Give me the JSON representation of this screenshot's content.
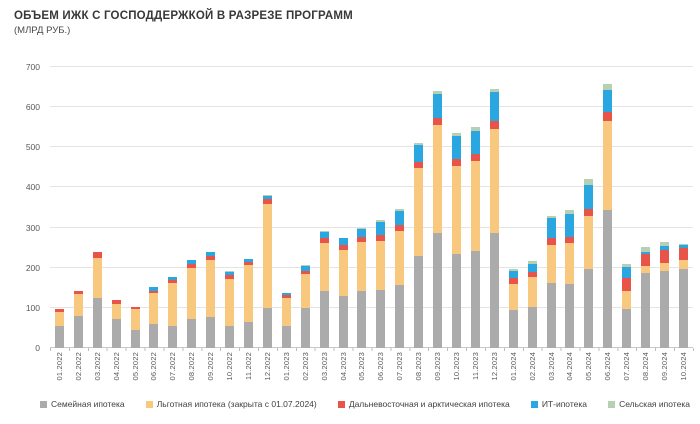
{
  "title": "ОБЪЕМ ИЖК С ГОСПОДДЕРЖКОЙ В РАЗРЕЗЕ ПРОГРАММ",
  "subtitle": "(МЛРД РУБ.)",
  "colors": {
    "family": "#ababab",
    "preferential": "#f8c87e",
    "far_east": "#e8534a",
    "it": "#2aa7e0",
    "rural": "#b7d0b4",
    "grid": "#e4e4e4",
    "axis": "#c9c9c9",
    "tick_text": "#5a5a5a",
    "title_text": "#383838"
  },
  "chart_data": {
    "type": "bar",
    "stacked": true,
    "title": "ОБЪЕМ ИЖК С ГОСПОДДЕРЖКОЙ В РАЗРЕЗЕ ПРОГРАММ",
    "subtitle": "(МЛРД РУБ.)",
    "ylabel": "млрд руб.",
    "ylim": [
      0,
      700
    ],
    "ytick_step": 100,
    "grid": true,
    "legend_position": "bottom",
    "categories": [
      "01.2022",
      "02.2022",
      "03.2022",
      "04.2022",
      "05.2022",
      "06.2022",
      "07.2022",
      "08.2022",
      "09.2022",
      "10.2022",
      "11.2022",
      "12.2022",
      "01.2023",
      "02.2023",
      "03.2023",
      "04.2023",
      "05.2023",
      "06.2023",
      "07.2023",
      "08.2023",
      "09.2023",
      "10.2023",
      "11.2023",
      "12.2023",
      "01.2024",
      "02.2024",
      "03.2024",
      "04.2024",
      "05.2024",
      "06.2024",
      "07.2024",
      "08.2024",
      "09.2024",
      "10.2024"
    ],
    "series": [
      {
        "name": "Семейная ипотека",
        "color_key": "family",
        "values": [
          56,
          80,
          125,
          72,
          46,
          60,
          56,
          73,
          77,
          55,
          64,
          99,
          56,
          100,
          143,
          130,
          143,
          144,
          157,
          230,
          286,
          234,
          241,
          287,
          94,
          102,
          161,
          159,
          196,
          345,
          97,
          186,
          192,
          198
        ]
      },
      {
        "name": "Льготная ипотека (закрыта с 01.07.2024)",
        "color_key": "preferential",
        "values": [
          33,
          55,
          100,
          38,
          50,
          76,
          105,
          126,
          143,
          118,
          143,
          259,
          69,
          85,
          118,
          114,
          122,
          123,
          134,
          218,
          270,
          220,
          226,
          258,
          66,
          74,
          95,
          102,
          132,
          220,
          46,
          18,
          21,
          21
        ]
      },
      {
        "name": "Дальневосточная и арктическая ипотека",
        "color_key": "far_east",
        "values": [
          8,
          7,
          15,
          10,
          5,
          7,
          8,
          11,
          10,
          9,
          8,
          13,
          8,
          8,
          12,
          13,
          12,
          15,
          15,
          16,
          18,
          17,
          16,
          21,
          14,
          13,
          18,
          16,
          19,
          22,
          31,
          30,
          30,
          30
        ]
      },
      {
        "name": "ИТ-ипотека",
        "color_key": "it",
        "values": [
          0,
          0,
          0,
          0,
          0,
          9,
          7,
          9,
          9,
          7,
          6,
          7,
          4,
          12,
          15,
          16,
          20,
          32,
          35,
          42,
          58,
          57,
          58,
          71,
          18,
          21,
          50,
          58,
          60,
          55,
          28,
          4,
          11,
          8
        ]
      },
      {
        "name": "Сельская ипотека",
        "color_key": "rural",
        "values": [
          0,
          0,
          0,
          0,
          0,
          0,
          0,
          0,
          0,
          3,
          2,
          4,
          1,
          1,
          3,
          2,
          3,
          5,
          6,
          6,
          8,
          8,
          10,
          9,
          4,
          6,
          6,
          8,
          14,
          15,
          8,
          14,
          11,
          3
        ]
      }
    ]
  }
}
